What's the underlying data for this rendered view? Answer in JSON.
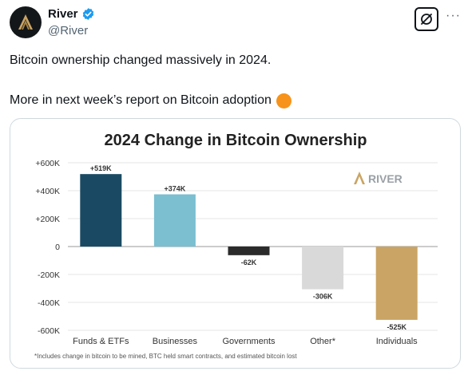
{
  "author": {
    "name": "River",
    "handle": "@River",
    "verified": true
  },
  "icons": {
    "avatar": "river-logo-icon",
    "verified": "verified-badge-icon",
    "grok": "grok-icon",
    "more": "more-options-icon",
    "bitcoin": "orange-circle-icon"
  },
  "more_label": "···",
  "tweet": {
    "line1": "Bitcoin ownership changed massively in 2024.",
    "line2": "More in next week’s report on Bitcoin adoption"
  },
  "colors": {
    "verified": "#1d9bf0",
    "bitcoin_orange": "#f7931a",
    "bar_funds": "#1a4a63",
    "bar_businesses": "#7bbfd1",
    "bar_governments": "#2b2b2b",
    "bar_other": "#d9d9d9",
    "bar_individuals": "#c9a464"
  },
  "chart_data": {
    "type": "bar",
    "title": "2024 Change in Bitcoin Ownership",
    "watermark": "RIVER",
    "categories": [
      "Funds & ETFs",
      "Businesses",
      "Governments",
      "Other*",
      "Individuals"
    ],
    "values": [
      519000,
      374000,
      -62000,
      -306000,
      -525000
    ],
    "value_labels": [
      "+519K",
      "+374K",
      "-62K",
      "-306K",
      "-525K"
    ],
    "bar_colors": [
      "#1a4a63",
      "#7bbfd1",
      "#2b2b2b",
      "#d9d9d9",
      "#c9a464"
    ],
    "ylim": [
      -600000,
      600000
    ],
    "yticks": [
      600000,
      400000,
      200000,
      0,
      -200000,
      -400000,
      -600000
    ],
    "ytick_labels": [
      "+600K",
      "+400K",
      "+200K",
      "0",
      "-200K",
      "-400K",
      "-600K"
    ],
    "grid": true,
    "xlabel": "",
    "ylabel": "",
    "footnote": "*Includes change in bitcoin to be mined, BTC held smart contracts, and estimated bitcoin lost"
  }
}
